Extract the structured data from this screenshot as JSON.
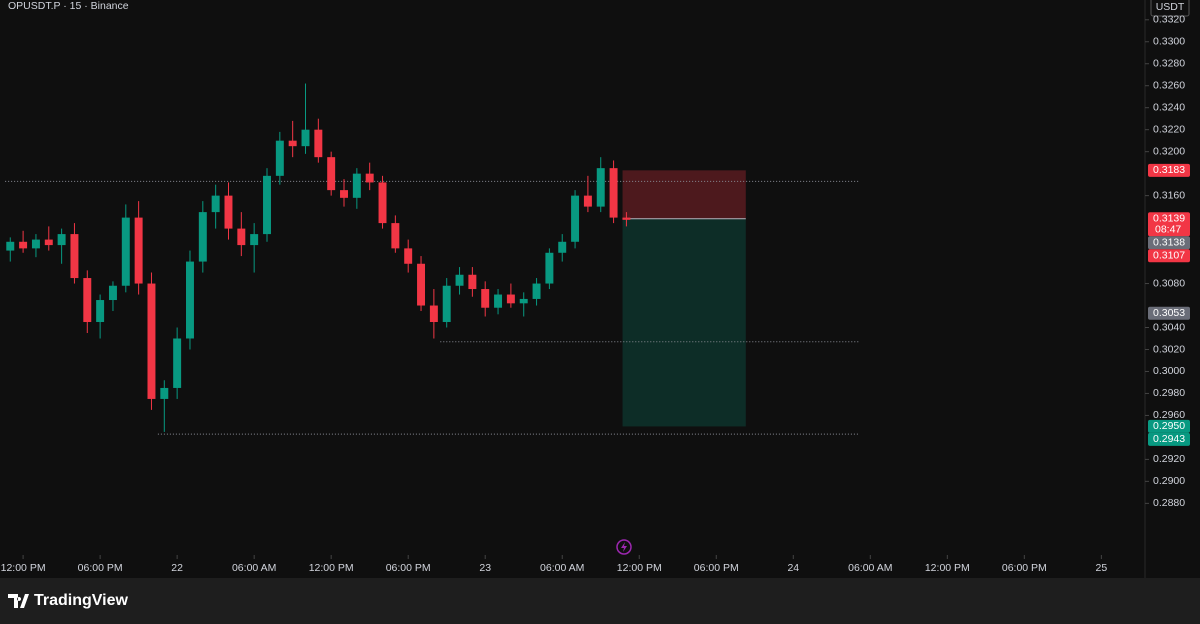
{
  "chart_data": {
    "type": "candlestick",
    "title": "OPUSDT.P · 15 · Binance",
    "currency": "USDT",
    "brand": "TradingView",
    "up_color": "#089981",
    "down_color": "#f23645",
    "x": [
      -1,
      0,
      1,
      2,
      3,
      4,
      5,
      6,
      7,
      8,
      9,
      10,
      11,
      12,
      13,
      14,
      15,
      16,
      17,
      18,
      19,
      20,
      21,
      22,
      23,
      24,
      25,
      26,
      27,
      28,
      29,
      30,
      31,
      32,
      33,
      34,
      35,
      36,
      37,
      38,
      39,
      40,
      41,
      42,
      43,
      44,
      45,
      46,
      47
    ],
    "candles": [
      [
        0.311,
        0.3122,
        0.31,
        0.3118
      ],
      [
        0.3118,
        0.3128,
        0.3108,
        0.3112
      ],
      [
        0.3112,
        0.3125,
        0.3104,
        0.312
      ],
      [
        0.312,
        0.3132,
        0.311,
        0.3115
      ],
      [
        0.3115,
        0.313,
        0.3098,
        0.3125
      ],
      [
        0.3125,
        0.3135,
        0.308,
        0.3085
      ],
      [
        0.3085,
        0.3092,
        0.3035,
        0.3045
      ],
      [
        0.3045,
        0.307,
        0.303,
        0.3065
      ],
      [
        0.3065,
        0.3082,
        0.3055,
        0.3078
      ],
      [
        0.3078,
        0.3152,
        0.3072,
        0.314
      ],
      [
        0.314,
        0.3155,
        0.307,
        0.308
      ],
      [
        0.308,
        0.309,
        0.2965,
        0.2975
      ],
      [
        0.2975,
        0.2992,
        0.2945,
        0.2985
      ],
      [
        0.2985,
        0.304,
        0.2975,
        0.303
      ],
      [
        0.303,
        0.311,
        0.302,
        0.31
      ],
      [
        0.31,
        0.3155,
        0.309,
        0.3145
      ],
      [
        0.3145,
        0.317,
        0.313,
        0.316
      ],
      [
        0.316,
        0.3172,
        0.312,
        0.313
      ],
      [
        0.313,
        0.3145,
        0.3105,
        0.3115
      ],
      [
        0.3115,
        0.3135,
        0.309,
        0.3125
      ],
      [
        0.3125,
        0.3185,
        0.3118,
        0.3178
      ],
      [
        0.3178,
        0.3218,
        0.317,
        0.321
      ],
      [
        0.321,
        0.3228,
        0.3195,
        0.3205
      ],
      [
        0.3205,
        0.3262,
        0.3198,
        0.322
      ],
      [
        0.322,
        0.323,
        0.319,
        0.3195
      ],
      [
        0.3195,
        0.32,
        0.316,
        0.3165
      ],
      [
        0.3165,
        0.3175,
        0.315,
        0.3158
      ],
      [
        0.3158,
        0.3185,
        0.3148,
        0.318
      ],
      [
        0.318,
        0.319,
        0.3165,
        0.3172
      ],
      [
        0.3172,
        0.3178,
        0.313,
        0.3135
      ],
      [
        0.3135,
        0.3142,
        0.3108,
        0.3112
      ],
      [
        0.3112,
        0.312,
        0.309,
        0.3098
      ],
      [
        0.3098,
        0.3105,
        0.3055,
        0.306
      ],
      [
        0.306,
        0.3075,
        0.303,
        0.3045
      ],
      [
        0.3045,
        0.3085,
        0.304,
        0.3078
      ],
      [
        0.3078,
        0.3095,
        0.307,
        0.3088
      ],
      [
        0.3088,
        0.3095,
        0.3068,
        0.3075
      ],
      [
        0.3075,
        0.3082,
        0.305,
        0.3058
      ],
      [
        0.3058,
        0.3075,
        0.3052,
        0.307
      ],
      [
        0.307,
        0.308,
        0.3058,
        0.3062
      ],
      [
        0.3062,
        0.3072,
        0.305,
        0.3066
      ],
      [
        0.3066,
        0.3085,
        0.306,
        0.308
      ],
      [
        0.308,
        0.3112,
        0.3075,
        0.3108
      ],
      [
        0.3108,
        0.3125,
        0.31,
        0.3118
      ],
      [
        0.3118,
        0.3165,
        0.3112,
        0.316
      ],
      [
        0.316,
        0.3178,
        0.3145,
        0.315
      ],
      [
        0.315,
        0.3195,
        0.3145,
        0.3185
      ],
      [
        0.3185,
        0.3192,
        0.3135,
        0.314
      ],
      [
        0.314,
        0.3145,
        0.3132,
        0.3138
      ]
    ],
    "xlim": [
      -1.8,
      87.4
    ],
    "xticks": [
      {
        "value": 0,
        "label": "12:00 PM"
      },
      {
        "value": 6,
        "label": "06:00 PM"
      },
      {
        "value": 12,
        "label": "22"
      },
      {
        "value": 18,
        "label": "06:00 AM"
      },
      {
        "value": 24,
        "label": "12:00 PM"
      },
      {
        "value": 30,
        "label": "06:00 PM"
      },
      {
        "value": 36,
        "label": "23"
      },
      {
        "value": 42,
        "label": "06:00 AM"
      },
      {
        "value": 48,
        "label": "12:00 PM"
      },
      {
        "value": 54,
        "label": "06:00 PM"
      },
      {
        "value": 60,
        "label": "24"
      },
      {
        "value": 66,
        "label": "06:00 AM"
      },
      {
        "value": 72,
        "label": "12:00 PM"
      },
      {
        "value": 78,
        "label": "06:00 PM"
      },
      {
        "value": 84,
        "label": "25"
      }
    ],
    "ylim": [
      0.2833,
      0.3338
    ],
    "yticks": [
      {
        "value": 0.332,
        "label": "0.3320"
      },
      {
        "value": 0.33,
        "label": "0.3300"
      },
      {
        "value": 0.328,
        "label": "0.3280"
      },
      {
        "value": 0.326,
        "label": "0.3260"
      },
      {
        "value": 0.324,
        "label": "0.3240"
      },
      {
        "value": 0.322,
        "label": "0.3220"
      },
      {
        "value": 0.32,
        "label": "0.3200"
      },
      {
        "value": 0.316,
        "label": "0.3160"
      },
      {
        "value": 0.308,
        "label": "0.3080"
      },
      {
        "value": 0.304,
        "label": "0.3040"
      },
      {
        "value": 0.302,
        "label": "0.3020"
      },
      {
        "value": 0.3,
        "label": "0.3000"
      },
      {
        "value": 0.298,
        "label": "0.2980"
      },
      {
        "value": 0.296,
        "label": "0.2960"
      },
      {
        "value": 0.292,
        "label": "0.2920"
      },
      {
        "value": 0.29,
        "label": "0.2900"
      },
      {
        "value": 0.288,
        "label": "0.2880"
      }
    ],
    "price_labels": [
      {
        "value": 0.3183,
        "label": "0.3183",
        "color": "#f23645"
      },
      {
        "value": 0.3139,
        "label": "0.3139",
        "color": "#f23645",
        "countdown": "08:47"
      },
      {
        "value": 0.3138,
        "label": "0.3138",
        "color": "#6a6d78"
      },
      {
        "value": 0.3107,
        "label": "0.3107",
        "color": "#f23645"
      },
      {
        "value": 0.3053,
        "label": "0.3053",
        "color": "#6a6d78"
      },
      {
        "value": 0.295,
        "label": "0.2950",
        "color": "#089981"
      },
      {
        "value": 0.2943,
        "label": "0.2943",
        "color": "#089981"
      }
    ],
    "levels": [
      {
        "value": 0.3173,
        "x": [
          -1.4,
          65.1
        ]
      },
      {
        "value": 0.3027,
        "x": [
          32.5,
          65.1
        ]
      },
      {
        "value": 0.2943,
        "x": [
          10.5,
          65.1
        ]
      }
    ],
    "position": {
      "entry": 0.3139,
      "stop": 0.3183,
      "target": 0.295,
      "x": [
        46.7,
        56.3
      ]
    }
  }
}
